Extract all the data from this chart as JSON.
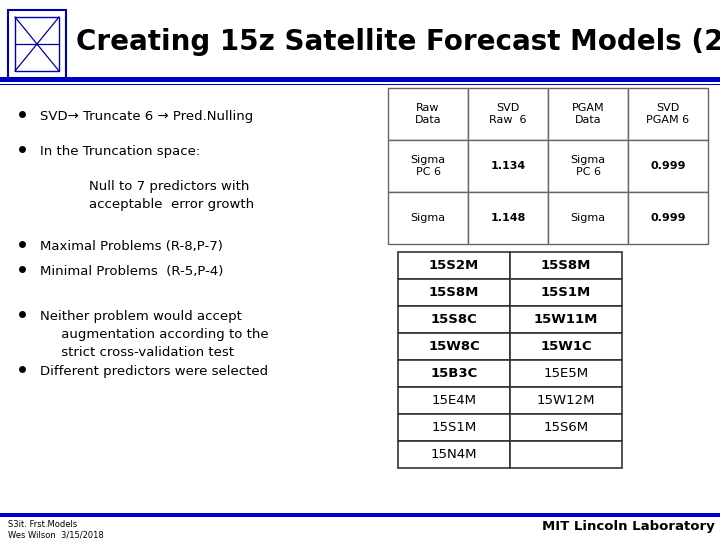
{
  "title": "Creating 15z Satellite Forecast Models (2)",
  "background_color": "#ffffff",
  "header_line_color": "#0000cc",
  "title_color": "#000000",
  "table1_headers": [
    "Raw\nData",
    "SVD\nRaw  6",
    "PGAM\nData",
    "SVD\nPGAM 6"
  ],
  "table1_rows": [
    [
      "Sigma\nPC 6",
      "1.134",
      "Sigma\nPC 6",
      "0.999"
    ],
    [
      "Sigma",
      "1.148",
      "Sigma",
      "0.999"
    ]
  ],
  "table2_col1": [
    "15S2M",
    "15S8M",
    "15S8C",
    "15W8C",
    "15B3C",
    "15E4M",
    "15S1M",
    "15N4M"
  ],
  "table2_col2": [
    "15S8M",
    "15S1M",
    "15W11M",
    "15W1C",
    "15E5M",
    "15W12M",
    "15S6M",
    ""
  ],
  "table2_bold_col0": [
    0,
    1,
    2,
    3,
    4
  ],
  "table2_bold_col1": [
    0,
    1,
    2,
    3
  ],
  "footer_text_left": "S3it. Frst.Models\nWes Wilson  3/15/2018",
  "footer_text_right": "MIT Lincoln Laboratory",
  "logo_color": "#0000aa",
  "bullet_items": [
    [
      true,
      "SVD→ Truncate 6 → Pred.Nulling"
    ],
    [
      true,
      "In the Truncation space:"
    ],
    [
      false,
      "        Null to 7 predictors with\n        acceptable  error growth"
    ],
    [
      true,
      "Maximal Problems (R-8,P-7)"
    ],
    [
      true,
      "Minimal Problems  (R-5,P-4)"
    ],
    [
      true,
      "Neither problem would accept\n     augmentation according to the\n     strict cross-validation test"
    ],
    [
      true,
      "Different predictors were selected"
    ]
  ]
}
